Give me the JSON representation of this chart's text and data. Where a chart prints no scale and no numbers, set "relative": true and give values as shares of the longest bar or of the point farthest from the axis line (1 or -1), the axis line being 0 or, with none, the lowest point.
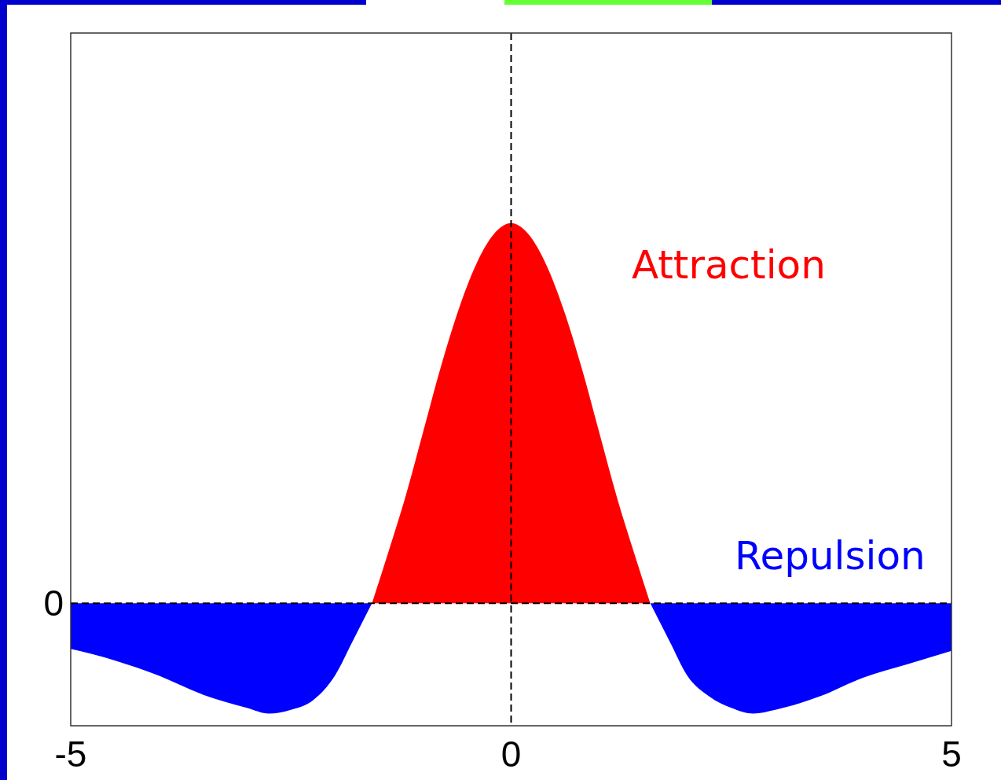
{
  "chart_data": {
    "type": "area",
    "relative": true,
    "xlim": [
      -5,
      5
    ],
    "xticks": [
      -5,
      0,
      5
    ],
    "series": [
      {
        "name": "Attraction",
        "color": "#ff0000",
        "x": [
          -1.58,
          -1.4,
          -1.2,
          -1,
          -0.8,
          -0.6,
          -0.4,
          -0.2,
          0,
          0.2,
          0.4,
          0.6,
          0.8,
          1,
          1.2,
          1.4,
          1.58
        ],
        "values": [
          0,
          0.13,
          0.28,
          0.45,
          0.62,
          0.77,
          0.89,
          0.97,
          1,
          0.97,
          0.89,
          0.77,
          0.62,
          0.45,
          0.28,
          0.13,
          0
        ]
      },
      {
        "name": "Repulsion",
        "color": "#0000ff",
        "x": [
          -5,
          -4.5,
          -4,
          -3.5,
          -3,
          -2.75,
          -2.5,
          -2.25,
          -2,
          -1.8,
          -1.58,
          0,
          1.58,
          1.8,
          2,
          2.25,
          2.5,
          2.75,
          3,
          3.5,
          4,
          4.5,
          5
        ],
        "values": [
          -0.12,
          -0.15,
          -0.19,
          -0.24,
          -0.275,
          -0.29,
          -0.28,
          -0.255,
          -0.19,
          -0.1,
          0,
          null,
          0,
          -0.1,
          -0.19,
          -0.245,
          -0.275,
          -0.29,
          -0.28,
          -0.245,
          -0.195,
          -0.16,
          -0.125
        ]
      }
    ],
    "ref_lines": [
      {
        "axis": "y",
        "value": 0,
        "label": "0",
        "line_style": "dashed",
        "color": "#000000"
      },
      {
        "axis": "x",
        "value": 0,
        "line_style": "dashed",
        "color": "#000000"
      }
    ]
  }
}
